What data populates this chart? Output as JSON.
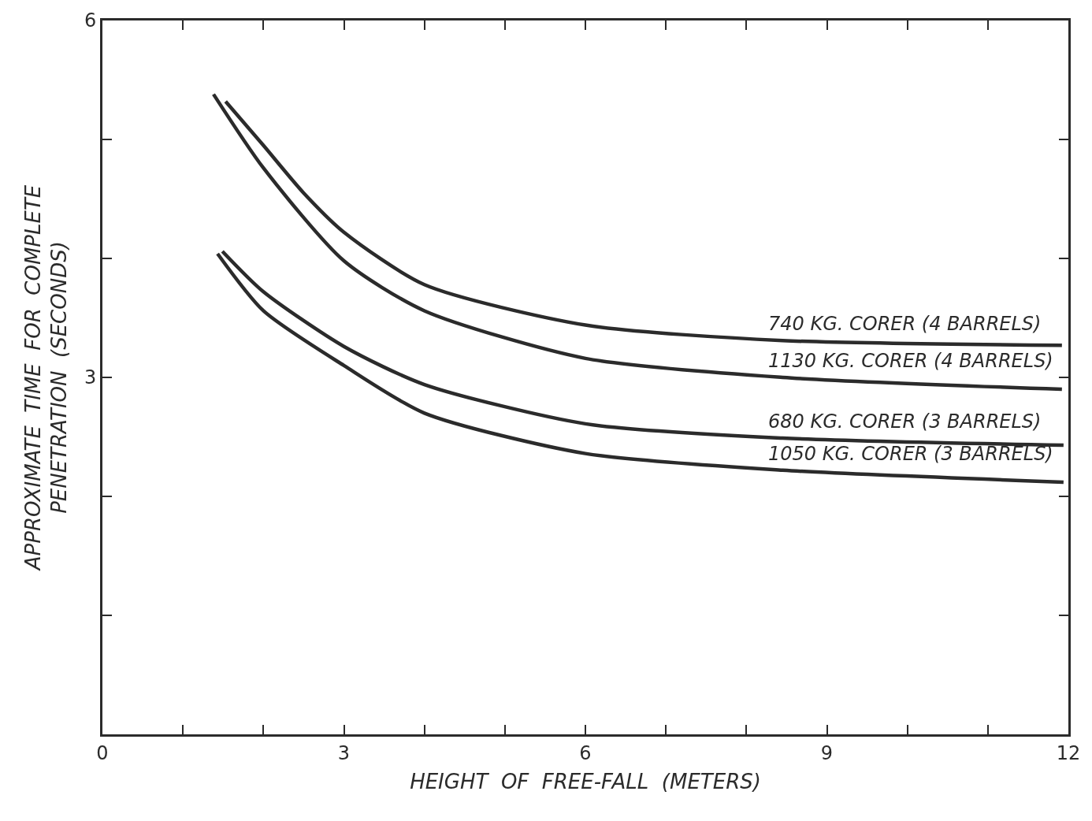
{
  "chart_data": {
    "type": "line",
    "xlabel": "HEIGHT  OF  FREE-FALL  (METERS)",
    "ylabel": "APPROXIMATE  TIME  FOR  COMPLETE\nPENETRATION  (SECONDS)",
    "xlim": [
      0,
      12
    ],
    "ylim": [
      0,
      6
    ],
    "xticks": [
      0,
      {
        "value": 1,
        "label": null
      },
      {
        "value": 2,
        "label": null
      },
      3,
      {
        "value": 4,
        "label": null
      },
      {
        "value": 5,
        "label": null
      },
      6,
      {
        "value": 7,
        "label": null
      },
      {
        "value": 8,
        "label": null
      },
      9,
      {
        "value": 10,
        "label": null
      },
      {
        "value": 11,
        "label": null
      },
      12
    ],
    "yticks": [
      {
        "value": 0,
        "label": null
      },
      {
        "value": 1,
        "label": null
      },
      {
        "value": 2,
        "label": null
      },
      3,
      {
        "value": 4,
        "label": null
      },
      {
        "value": 5,
        "label": null
      },
      6
    ],
    "legend": false,
    "marker": "none",
    "line_style": "solid",
    "series": [
      {
        "name": "740 KG. CORER (4 BARRELS)",
        "color": "#2b2b2b",
        "x": [
          1.53,
          2.0,
          2.5,
          3.0,
          4.0,
          6.0,
          8.45,
          11.92
        ],
        "values": [
          5.32,
          4.95,
          4.55,
          4.22,
          3.78,
          3.44,
          3.31,
          3.27
        ]
      },
      {
        "name": "1130 KG. CORER (4 BARRELS)",
        "color": "#2b2b2b",
        "x": [
          1.38,
          2.0,
          3.0,
          4.0,
          6.0,
          8.45,
          11.92
        ],
        "values": [
          5.38,
          4.76,
          3.98,
          3.56,
          3.16,
          3.0,
          2.9
        ]
      },
      {
        "name": "680 KG. CORER (3 BARRELS)",
        "color": "#2b2b2b",
        "x": [
          1.49,
          2.0,
          3.0,
          4.0,
          6.0,
          8.45,
          11.94
        ],
        "values": [
          4.06,
          3.72,
          3.26,
          2.94,
          2.61,
          2.49,
          2.43
        ]
      },
      {
        "name": "1050 KG. CORER (3 BARRELS)",
        "color": "#2b2b2b",
        "x": [
          1.43,
          2.0,
          3.0,
          4.0,
          6.0,
          8.45,
          11.94
        ],
        "values": [
          4.04,
          3.56,
          3.1,
          2.7,
          2.36,
          2.22,
          2.12
        ]
      }
    ]
  }
}
